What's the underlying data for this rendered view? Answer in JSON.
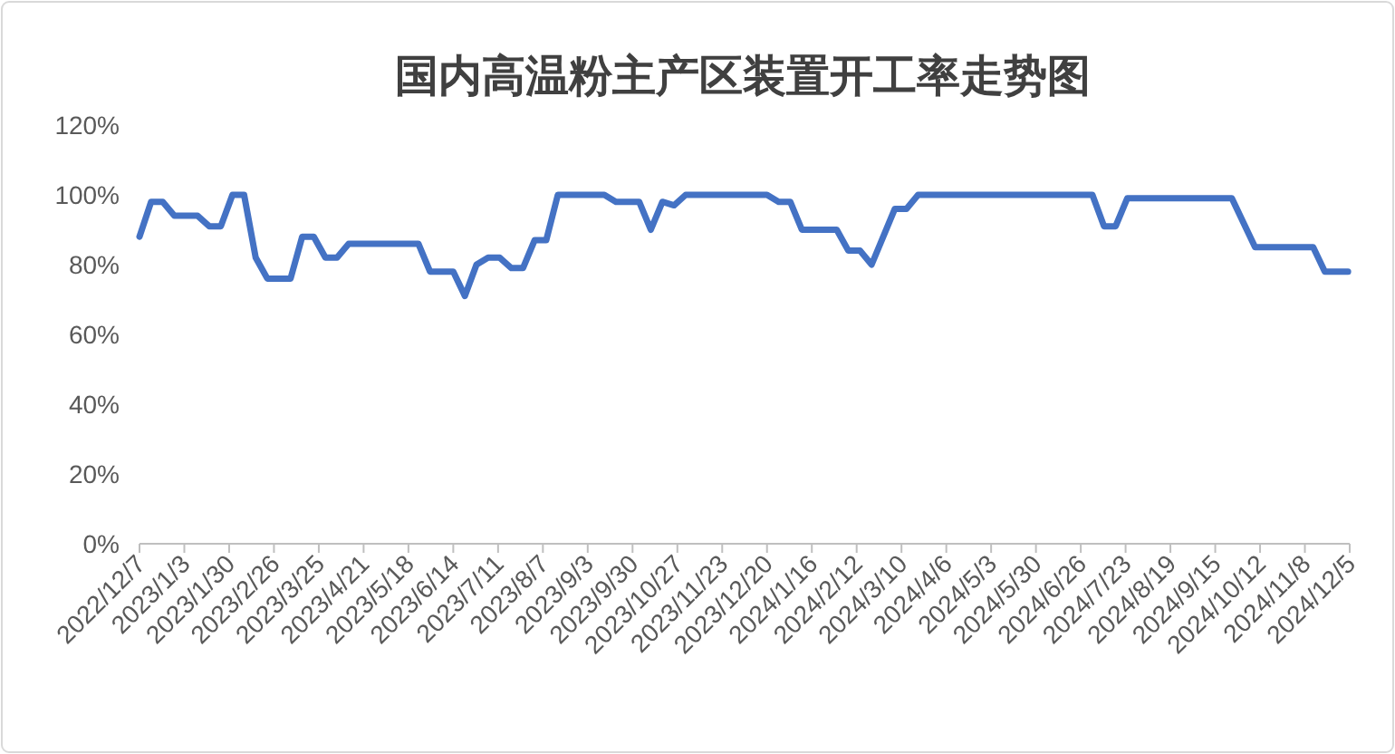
{
  "chart_data": {
    "type": "line",
    "title": "国内高温粉主产区装置开工率走势图",
    "x": [
      "2022-12-07",
      "2022-12-14",
      "2022-12-21",
      "2022-12-28",
      "2023-01-11",
      "2023-01-18",
      "2023-01-25",
      "2023-02-01",
      "2023-02-08",
      "2023-02-15",
      "2023-02-22",
      "2023-03-08",
      "2023-03-15",
      "2023-03-22",
      "2023-03-29",
      "2023-04-05",
      "2023-04-12",
      "2023-05-24",
      "2023-05-31",
      "2023-06-14",
      "2023-06-21",
      "2023-06-28",
      "2023-07-05",
      "2023-07-12",
      "2023-07-19",
      "2023-07-26",
      "2023-08-02",
      "2023-08-09",
      "2023-08-16",
      "2023-09-13",
      "2023-09-20",
      "2023-10-04",
      "2023-10-11",
      "2023-10-18",
      "2023-10-25",
      "2023-11-01",
      "2023-12-20",
      "2023-12-27",
      "2024-01-03",
      "2024-01-10",
      "2024-01-31",
      "2024-02-07",
      "2024-02-14",
      "2024-02-21",
      "2024-03-06",
      "2024-03-13",
      "2024-03-20",
      "2024-07-03",
      "2024-07-10",
      "2024-07-17",
      "2024-07-24",
      "2024-09-25",
      "2024-10-09",
      "2024-11-13",
      "2024-11-20",
      "2024-12-04"
    ],
    "series": [
      {
        "color": "#4472c4",
        "values": [
          88,
          98,
          98,
          94,
          94,
          91,
          91,
          100,
          100,
          82,
          76,
          76,
          88,
          88,
          82,
          82,
          86,
          86,
          78,
          78,
          71,
          80,
          82,
          82,
          79,
          79,
          87,
          87,
          100,
          100,
          98,
          98,
          90,
          98,
          97,
          100,
          100,
          98,
          98,
          90,
          90,
          84,
          84,
          80,
          96,
          96,
          100,
          100,
          91,
          91,
          99,
          99,
          85,
          85,
          78,
          78
        ]
      }
    ],
    "xlim": [
      "2022-12-07",
      "2024-12-05"
    ],
    "xticks": [
      {
        "value": "2022-12-07",
        "label": "2022/12/7"
      },
      {
        "value": "2023-01-03",
        "label": "2023/1/3"
      },
      {
        "value": "2023-01-30",
        "label": "2023/1/30"
      },
      {
        "value": "2023-02-26",
        "label": "2023/2/26"
      },
      {
        "value": "2023-03-25",
        "label": "2023/3/25"
      },
      {
        "value": "2023-04-21",
        "label": "2023/4/21"
      },
      {
        "value": "2023-05-18",
        "label": "2023/5/18"
      },
      {
        "value": "2023-06-14",
        "label": "2023/6/14"
      },
      {
        "value": "2023-07-11",
        "label": "2023/7/11"
      },
      {
        "value": "2023-08-07",
        "label": "2023/8/7"
      },
      {
        "value": "2023-09-03",
        "label": "2023/9/3"
      },
      {
        "value": "2023-09-30",
        "label": "2023/9/30"
      },
      {
        "value": "2023-10-27",
        "label": "2023/10/27"
      },
      {
        "value": "2023-11-23",
        "label": "2023/11/23"
      },
      {
        "value": "2023-12-20",
        "label": "2023/12/20"
      },
      {
        "value": "2024-01-16",
        "label": "2024/1/16"
      },
      {
        "value": "2024-02-12",
        "label": "2024/2/12"
      },
      {
        "value": "2024-03-10",
        "label": "2024/3/10"
      },
      {
        "value": "2024-04-06",
        "label": "2024/4/6"
      },
      {
        "value": "2024-05-03",
        "label": "2024/5/3"
      },
      {
        "value": "2024-05-30",
        "label": "2024/5/30"
      },
      {
        "value": "2024-06-26",
        "label": "2024/6/26"
      },
      {
        "value": "2024-07-23",
        "label": "2024/7/23"
      },
      {
        "value": "2024-08-19",
        "label": "2024/8/19"
      },
      {
        "value": "2024-09-15",
        "label": "2024/9/15"
      },
      {
        "value": "2024-10-12",
        "label": "2024/10/12"
      },
      {
        "value": "2024-11-08",
        "label": "2024/11/8"
      },
      {
        "value": "2024-12-05",
        "label": "2024/12/5"
      }
    ],
    "ylim": [
      0,
      120
    ],
    "yticks": [
      {
        "value": 0,
        "label": "0%"
      },
      {
        "value": 20,
        "label": "20%"
      },
      {
        "value": 40,
        "label": "40%"
      },
      {
        "value": 60,
        "label": "60%"
      },
      {
        "value": 80,
        "label": "80%"
      },
      {
        "value": 100,
        "label": "100%"
      },
      {
        "value": 120,
        "label": "120%"
      }
    ]
  }
}
